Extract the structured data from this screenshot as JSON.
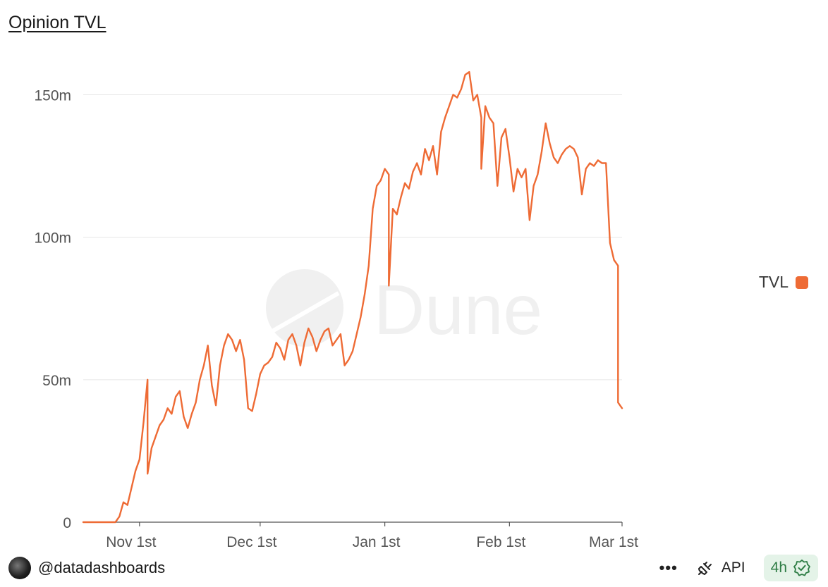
{
  "title": "Opinion TVL",
  "watermark": "Dune",
  "footer": {
    "author": "@datadashboards",
    "more_label": "•••",
    "api_label": "API",
    "refresh_label": "4h"
  },
  "colors": {
    "series": "#ee6b35",
    "grid": "#e6e6e6",
    "refresh_bg": "#e4f3e8",
    "refresh_fg": "#2e7d45"
  },
  "chart_data": {
    "type": "line",
    "ylim": [
      0,
      160
    ],
    "y_ticks": [
      0,
      50,
      100,
      150
    ],
    "y_tick_labels": [
      "0",
      "50m",
      "100m",
      "150m"
    ],
    "x_domain": [
      "2024-10-18",
      "2025-03-01"
    ],
    "x_ticks": [
      "2024-11-01",
      "2024-12-01",
      "2025-01-01",
      "2025-02-01",
      "2025-03-01"
    ],
    "x_tick_labels": [
      "Nov 1st",
      "Dec 1st",
      "Jan 1st",
      "Feb 1st",
      "Mar 1st"
    ],
    "legend": {
      "label": "TVL",
      "position": "right"
    },
    "series": [
      {
        "name": "TVL",
        "unit": "m",
        "points": [
          [
            "2024-10-18",
            0
          ],
          [
            "2024-10-26",
            0
          ],
          [
            "2024-10-27",
            2
          ],
          [
            "2024-10-28",
            7
          ],
          [
            "2024-10-29",
            6
          ],
          [
            "2024-10-30",
            12
          ],
          [
            "2024-10-31",
            18
          ],
          [
            "2024-11-01",
            22
          ],
          [
            "2024-11-02",
            35
          ],
          [
            "2024-11-03",
            50
          ],
          [
            "2024-11-03",
            17
          ],
          [
            "2024-11-04",
            26
          ],
          [
            "2024-11-05",
            30
          ],
          [
            "2024-11-06",
            34
          ],
          [
            "2024-11-07",
            36
          ],
          [
            "2024-11-08",
            40
          ],
          [
            "2024-11-09",
            38
          ],
          [
            "2024-11-10",
            44
          ],
          [
            "2024-11-11",
            46
          ],
          [
            "2024-11-12",
            37
          ],
          [
            "2024-11-13",
            33
          ],
          [
            "2024-11-14",
            38
          ],
          [
            "2024-11-15",
            42
          ],
          [
            "2024-11-16",
            50
          ],
          [
            "2024-11-17",
            55
          ],
          [
            "2024-11-18",
            62
          ],
          [
            "2024-11-19",
            48
          ],
          [
            "2024-11-20",
            41
          ],
          [
            "2024-11-21",
            55
          ],
          [
            "2024-11-22",
            62
          ],
          [
            "2024-11-23",
            66
          ],
          [
            "2024-11-24",
            64
          ],
          [
            "2024-11-25",
            60
          ],
          [
            "2024-11-26",
            64
          ],
          [
            "2024-11-27",
            57
          ],
          [
            "2024-11-28",
            40
          ],
          [
            "2024-11-29",
            39
          ],
          [
            "2024-11-30",
            45
          ],
          [
            "2024-12-01",
            52
          ],
          [
            "2024-12-02",
            55
          ],
          [
            "2024-12-03",
            56
          ],
          [
            "2024-12-04",
            58
          ],
          [
            "2024-12-05",
            63
          ],
          [
            "2024-12-06",
            61
          ],
          [
            "2024-12-07",
            57
          ],
          [
            "2024-12-08",
            64
          ],
          [
            "2024-12-09",
            66
          ],
          [
            "2024-12-10",
            62
          ],
          [
            "2024-12-11",
            55
          ],
          [
            "2024-12-12",
            63
          ],
          [
            "2024-12-13",
            68
          ],
          [
            "2024-12-14",
            65
          ],
          [
            "2024-12-15",
            60
          ],
          [
            "2024-12-16",
            64
          ],
          [
            "2024-12-17",
            67
          ],
          [
            "2024-12-18",
            68
          ],
          [
            "2024-12-19",
            62
          ],
          [
            "2024-12-20",
            64
          ],
          [
            "2024-12-21",
            66
          ],
          [
            "2024-12-22",
            55
          ],
          [
            "2024-12-23",
            57
          ],
          [
            "2024-12-24",
            60
          ],
          [
            "2024-12-25",
            66
          ],
          [
            "2024-12-26",
            72
          ],
          [
            "2024-12-27",
            80
          ],
          [
            "2024-12-28",
            90
          ],
          [
            "2024-12-29",
            110
          ],
          [
            "2024-12-30",
            118
          ],
          [
            "2024-12-31",
            120
          ],
          [
            "2025-01-01",
            124
          ],
          [
            "2025-01-02",
            122
          ],
          [
            "2025-01-02",
            83
          ],
          [
            "2025-01-03",
            110
          ],
          [
            "2025-01-04",
            108
          ],
          [
            "2025-01-05",
            114
          ],
          [
            "2025-01-06",
            119
          ],
          [
            "2025-01-07",
            117
          ],
          [
            "2025-01-08",
            123
          ],
          [
            "2025-01-09",
            126
          ],
          [
            "2025-01-10",
            122
          ],
          [
            "2025-01-11",
            131
          ],
          [
            "2025-01-12",
            127
          ],
          [
            "2025-01-13",
            132
          ],
          [
            "2025-01-14",
            122
          ],
          [
            "2025-01-15",
            137
          ],
          [
            "2025-01-16",
            142
          ],
          [
            "2025-01-17",
            146
          ],
          [
            "2025-01-18",
            150
          ],
          [
            "2025-01-19",
            149
          ],
          [
            "2025-01-20",
            152
          ],
          [
            "2025-01-21",
            157
          ],
          [
            "2025-01-22",
            158
          ],
          [
            "2025-01-23",
            148
          ],
          [
            "2025-01-24",
            150
          ],
          [
            "2025-01-25",
            142
          ],
          [
            "2025-01-25",
            124
          ],
          [
            "2025-01-26",
            146
          ],
          [
            "2025-01-27",
            142
          ],
          [
            "2025-01-28",
            140
          ],
          [
            "2025-01-29",
            118
          ],
          [
            "2025-01-30",
            135
          ],
          [
            "2025-01-31",
            138
          ],
          [
            "2025-02-01",
            128
          ],
          [
            "2025-02-02",
            116
          ],
          [
            "2025-02-03",
            124
          ],
          [
            "2025-02-04",
            121
          ],
          [
            "2025-02-05",
            124
          ],
          [
            "2025-02-06",
            106
          ],
          [
            "2025-02-07",
            118
          ],
          [
            "2025-02-08",
            122
          ],
          [
            "2025-02-09",
            130
          ],
          [
            "2025-02-10",
            140
          ],
          [
            "2025-02-11",
            133
          ],
          [
            "2025-02-12",
            128
          ],
          [
            "2025-02-13",
            126
          ],
          [
            "2025-02-14",
            129
          ],
          [
            "2025-02-15",
            131
          ],
          [
            "2025-02-16",
            132
          ],
          [
            "2025-02-17",
            131
          ],
          [
            "2025-02-18",
            128
          ],
          [
            "2025-02-19",
            115
          ],
          [
            "2025-02-20",
            124
          ],
          [
            "2025-02-21",
            126
          ],
          [
            "2025-02-22",
            125
          ],
          [
            "2025-02-23",
            127
          ],
          [
            "2025-02-24",
            126
          ],
          [
            "2025-02-25",
            126
          ],
          [
            "2025-02-26",
            98
          ],
          [
            "2025-02-27",
            92
          ],
          [
            "2025-02-28",
            90
          ],
          [
            "2025-02-28",
            42
          ],
          [
            "2025-03-01",
            40
          ]
        ]
      }
    ]
  }
}
